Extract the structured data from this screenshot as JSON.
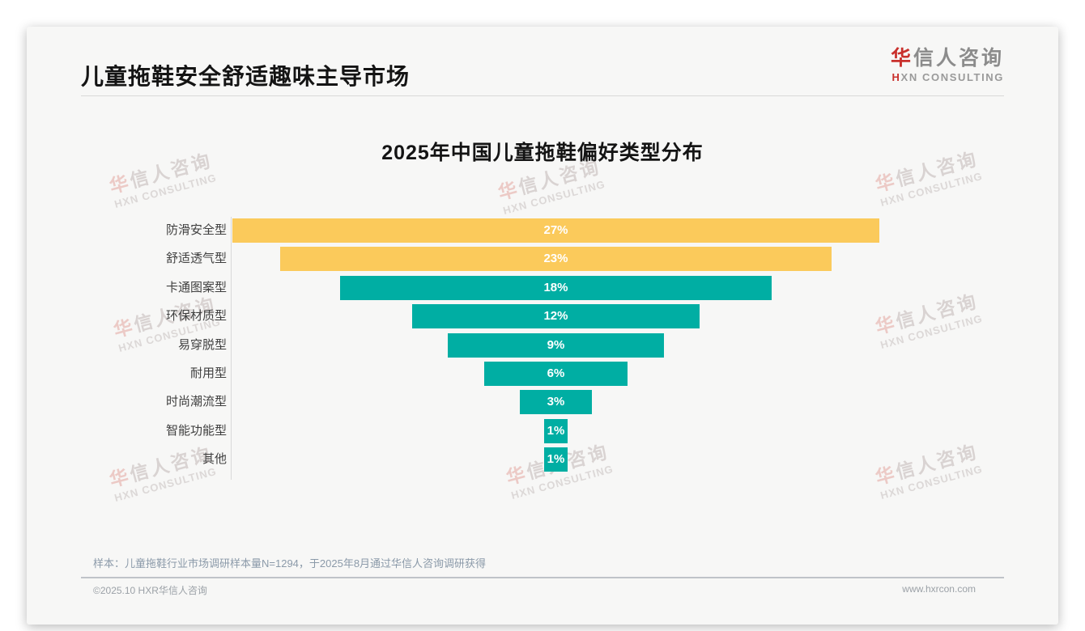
{
  "page": {
    "title": "儿童拖鞋安全舒适趣味主导市场",
    "logo": {
      "cn_first": "华",
      "cn_rest": "信人咨询",
      "en_first": "H",
      "en_rest": "XN CONSULTING"
    },
    "note": "样本：儿童拖鞋行业市场调研样本量N=1294，于2025年8月通过华信人咨询调研获得",
    "footer": {
      "copyright": "©2025.10 HXR华信人咨询",
      "website": "www.hxrcon.com"
    },
    "watermark": {
      "line1": "华信人咨询",
      "line1_first": "华",
      "line1_rest": "信人咨询",
      "line2": "HXN CONSULTING"
    }
  },
  "chart_data": {
    "type": "bar",
    "subtype": "centered-funnel",
    "title": "2025年中国儿童拖鞋偏好类型分布",
    "categories": [
      "防滑安全型",
      "舒适透气型",
      "卡通图案型",
      "环保材质型",
      "易穿脱型",
      "耐用型",
      "时尚潮流型",
      "智能功能型",
      "其他"
    ],
    "values": [
      27,
      23,
      18,
      12,
      9,
      6,
      3,
      1,
      1
    ],
    "value_labels": [
      "27%",
      "23%",
      "18%",
      "12%",
      "9%",
      "6%",
      "3%",
      "1%",
      "1%"
    ],
    "unit": "%",
    "xlim": [
      0,
      27
    ],
    "grid": false,
    "legend": "none",
    "bar_colors": [
      "#fbca5b",
      "#fbca5b",
      "#00aea3",
      "#00aea3",
      "#00aea3",
      "#00aea3",
      "#00aea3",
      "#00aea3",
      "#00aea3"
    ]
  },
  "colors": {
    "yellow": "#fbca5b",
    "teal": "#00aea3",
    "logo_red": "#c9302c",
    "logo_gray": "#8c8c8c",
    "title_text": "#141414",
    "note_text": "#8b9aa9",
    "footer_text": "#9ba1a7",
    "axis_line": "#d9d9d9",
    "card_bg": "#f7f7f6"
  }
}
